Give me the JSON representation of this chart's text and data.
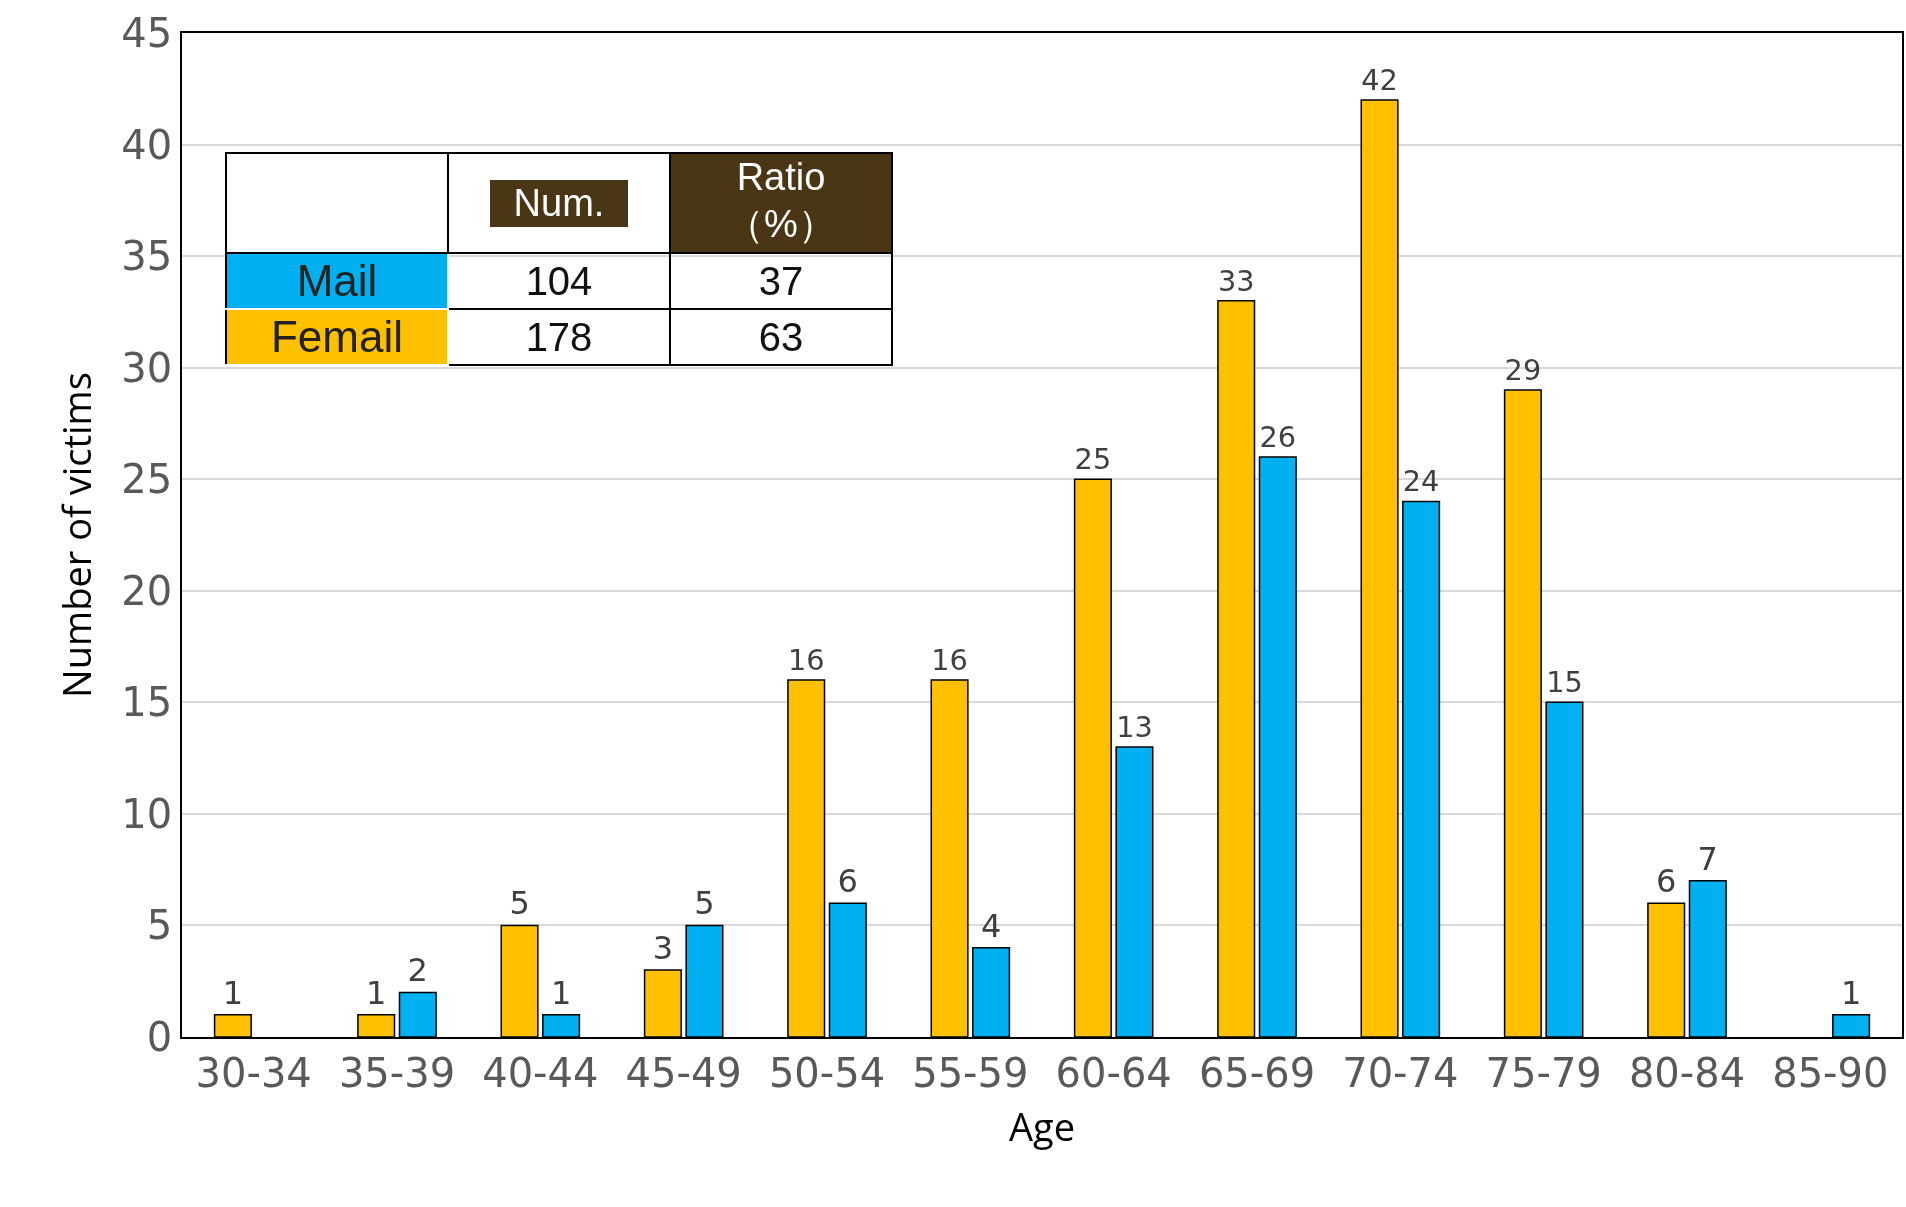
{
  "chart_data": {
    "type": "bar",
    "xlabel": "Age",
    "ylabel": "Number of victims",
    "categories": [
      "30-34",
      "35-39",
      "40-44",
      "45-49",
      "50-54",
      "55-59",
      "60-64",
      "65-69",
      "70-74",
      "75-79",
      "80-84",
      "85-90"
    ],
    "series": [
      {
        "name": "Femail",
        "color": "#ffc000",
        "values": [
          1,
          1,
          5,
          3,
          16,
          16,
          25,
          33,
          42,
          29,
          6,
          null
        ]
      },
      {
        "name": "Mail",
        "color": "#00b0f0",
        "values": [
          null,
          2,
          1,
          5,
          6,
          4,
          13,
          26,
          24,
          15,
          7,
          1
        ]
      }
    ],
    "ylim": [
      0,
      45
    ],
    "yticks": [
      0,
      5,
      10,
      15,
      20,
      25,
      30,
      35,
      40,
      45
    ],
    "grid": "y",
    "data_labels": true,
    "legend": "top left",
    "annotations": [
      "Num.",
      "Ratio（%）",
      "104",
      "37",
      "178",
      "63"
    ]
  }
}
